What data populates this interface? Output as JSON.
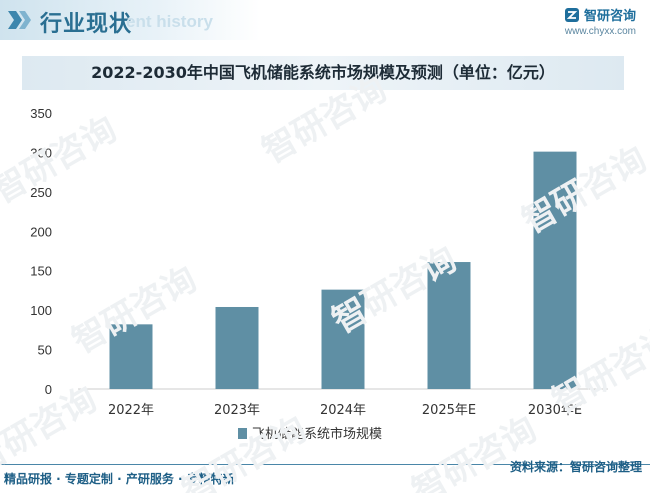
{
  "header": {
    "title": "行业现状",
    "subtitle": "ent history",
    "brand_name": "智研咨询",
    "brand_url": "www.chyxx.com"
  },
  "watermark": {
    "text": "智研咨询"
  },
  "colors": {
    "bar": "#5f8fa4",
    "accent": "#2a6f92",
    "axis": "#cccccc"
  },
  "chart_data": {
    "type": "bar",
    "title": "2022-2030年中国飞机储能系统市场规模及预测（单位：亿元）",
    "categories": [
      "2022年",
      "2023年",
      "2024年",
      "2025年E",
      "2030年E"
    ],
    "series": [
      {
        "name": "飞机储能系统市场规模",
        "values": [
          82,
          104,
          126,
          161,
          301
        ]
      }
    ],
    "ylim": [
      0,
      350
    ],
    "yticks": [
      0,
      50,
      100,
      150,
      200,
      250,
      300,
      350
    ],
    "xlabel": "",
    "ylabel": "",
    "legend_position": "bottom-center",
    "grid": false
  },
  "footer": {
    "left": "精品研报 · 专题定制 · 产研服务 · 专精特新",
    "source": "资料来源：智研咨询整理"
  }
}
